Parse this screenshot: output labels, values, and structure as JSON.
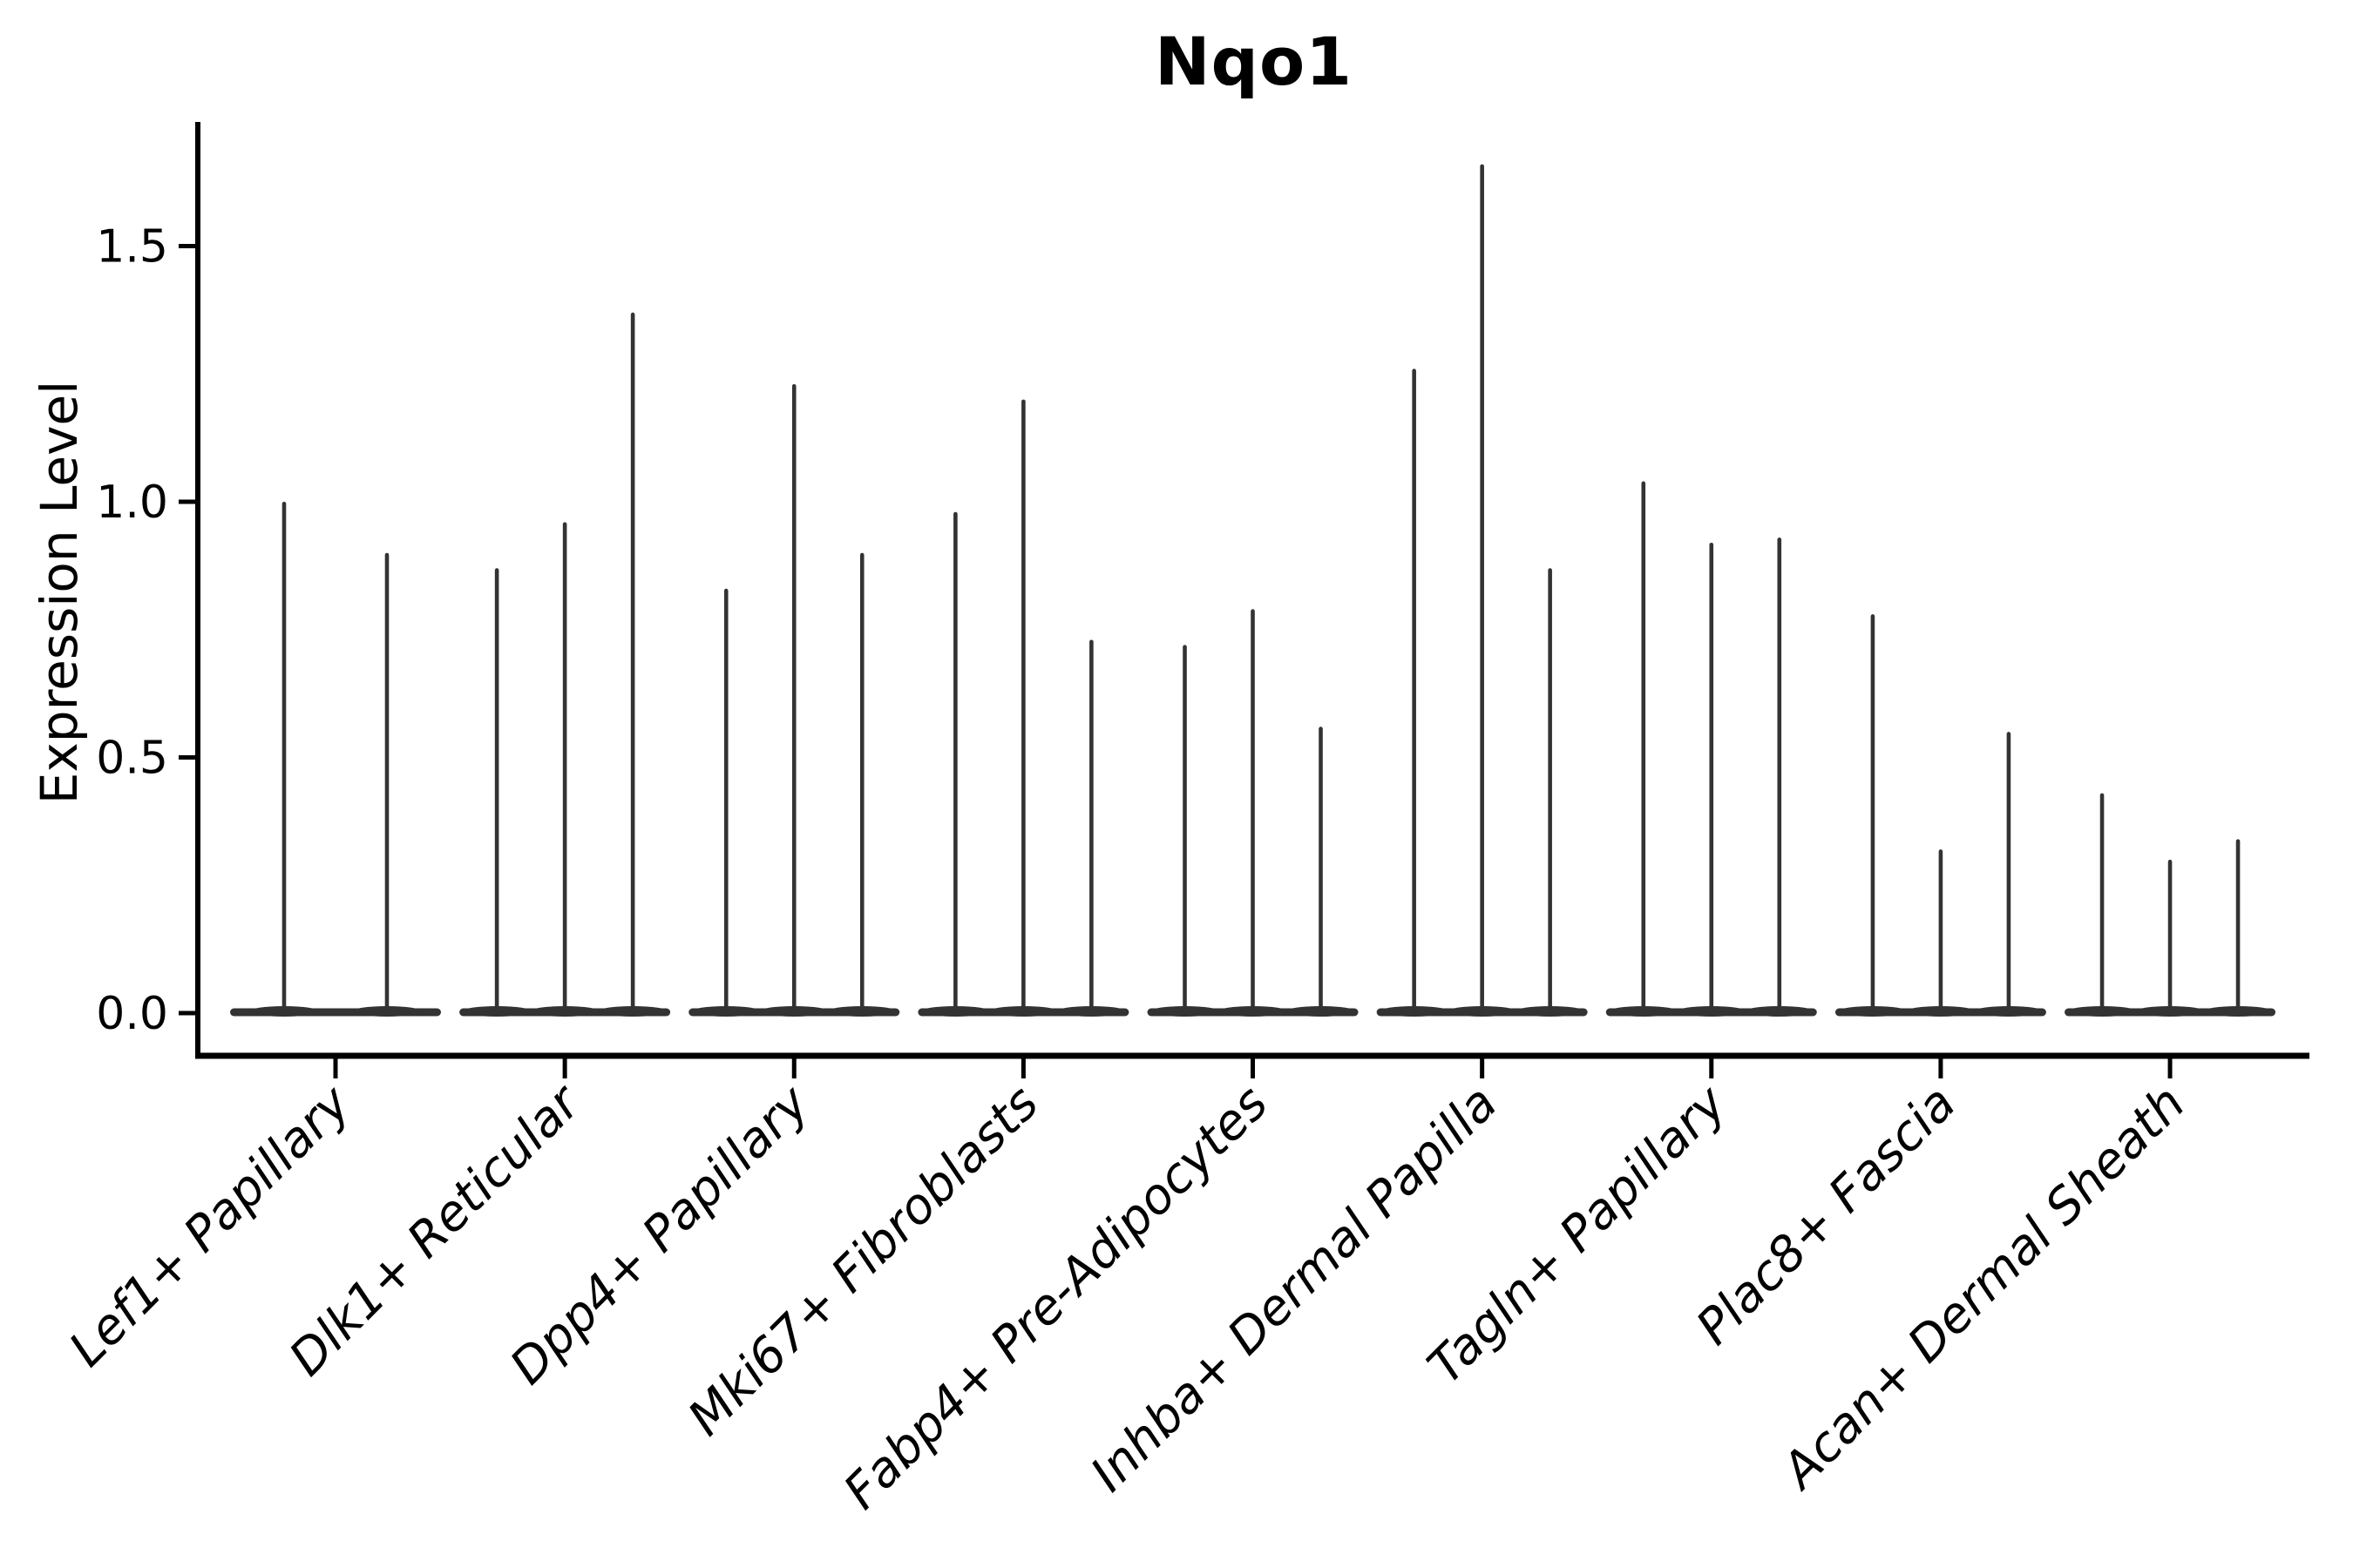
{
  "title": "Nqo1",
  "ink_color": "#000000",
  "violin_color": "#333333",
  "chart_data": {
    "type": "violin",
    "title": "Nqo1",
    "xlabel": "",
    "ylabel": "Expression Level",
    "ylim": [
      -0.08,
      1.74
    ],
    "yticks": [
      0.0,
      0.5,
      1.0,
      1.5
    ],
    "ytick_labels": [
      "0.0",
      "0.5",
      "1.0",
      "1.5"
    ],
    "grid": false,
    "legend": "none",
    "note": "Sparse single-cell expression violins: bulk of each distribution sits at 0 (wide flat base), each violin reduces to a thin vertical spike; peaks below are the top (max expression) of each thin violin; 2-3 violins (samples) per cell-type group.",
    "categories": [
      "Lef1+ Papillary",
      "Dlk1+ Reticular",
      "Dpp4+ Papillary",
      "Mki67+ Fibroblasts",
      "Fabp4+ Pre-Adipocytes",
      "Inhba+ Dermal Papilla",
      "Tagln+ Papillary",
      "Plac8+ Fascia",
      "Acan+ Dermal Sheath"
    ],
    "series": [
      {
        "category": "Lef1+ Papillary",
        "violin_peaks": [
          1.0,
          0.9
        ]
      },
      {
        "category": "Dlk1+ Reticular",
        "violin_peaks": [
          0.87,
          0.96,
          1.37
        ]
      },
      {
        "category": "Dpp4+ Papillary",
        "violin_peaks": [
          0.83,
          1.23,
          0.9
        ]
      },
      {
        "category": "Mki67+ Fibroblasts",
        "violin_peaks": [
          0.98,
          1.2,
          0.73
        ]
      },
      {
        "category": "Fabp4+ Pre-Adipocytes",
        "violin_peaks": [
          0.72,
          0.79,
          0.56
        ]
      },
      {
        "category": "Inhba+ Dermal Papilla",
        "violin_peaks": [
          1.26,
          1.66,
          0.87
        ]
      },
      {
        "category": "Tagln+ Papillary",
        "violin_peaks": [
          1.04,
          0.92,
          0.93
        ]
      },
      {
        "category": "Plac8+ Fascia",
        "violin_peaks": [
          0.78,
          0.32,
          0.55
        ]
      },
      {
        "category": "Acan+ Dermal Sheath",
        "violin_peaks": [
          0.43,
          0.3,
          0.34
        ]
      }
    ]
  }
}
